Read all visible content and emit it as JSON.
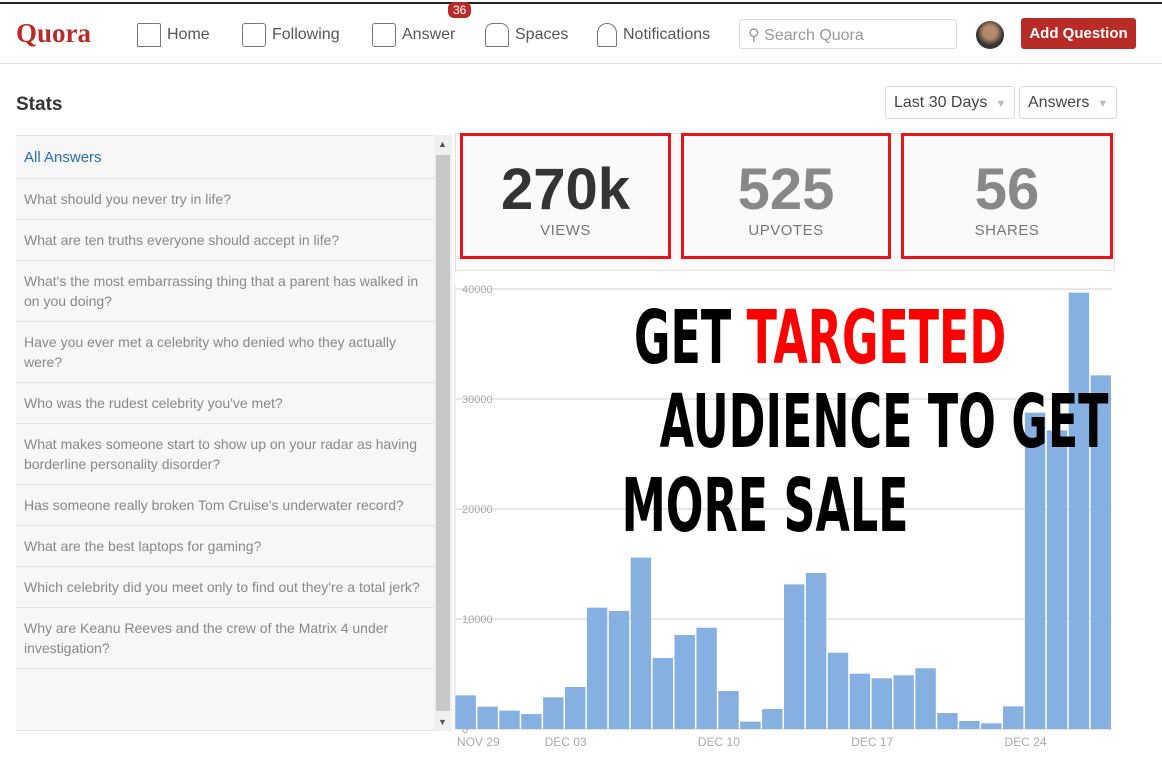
{
  "header": {
    "logo": "Quora",
    "nav": [
      {
        "label": "Home",
        "icon": "home-icon"
      },
      {
        "label": "Following",
        "icon": "list-icon"
      },
      {
        "label": "Answer",
        "icon": "pencil-icon",
        "badge": "36"
      },
      {
        "label": "Spaces",
        "icon": "people-icon"
      },
      {
        "label": "Notifications",
        "icon": "bell-icon"
      }
    ],
    "search_placeholder": "Search Quora",
    "add_question": "Add Question"
  },
  "page": {
    "title": "Stats",
    "range": "Last 30 Days",
    "type": "Answers"
  },
  "list": {
    "heading": "All Answers",
    "items": [
      "What should you never try in life?",
      "What are ten truths everyone should accept in life?",
      "What's the most embarrassing thing that a parent has walked in on you doing?",
      "Have you ever met a celebrity who denied who they actually were?",
      "Who was the rudest celebrity you've met?",
      "What makes someone start to show up on your radar as having borderline personality disorder?",
      "Has someone really broken Tom Cruise's underwater record?",
      "What are the best laptops for gaming?",
      "Which celebrity did you meet only to find out they're a total jerk?",
      "Why are Keanu Reeves and the crew of the Matrix 4 under investigation?"
    ]
  },
  "stats": [
    {
      "value": "270k",
      "label": "VIEWS"
    },
    {
      "value": "525",
      "label": "UPVOTES"
    },
    {
      "value": "56",
      "label": "SHARES"
    }
  ],
  "overlay": {
    "line1a": "GET ",
    "line1b": "TARGETED",
    "line2": "AUDIENCE TO GET",
    "line3": "MORE SALE"
  },
  "colors": {
    "brand": "#b92b27",
    "bar": "#86b0e1",
    "highlight": "#e8141c"
  },
  "chart_data": {
    "type": "bar",
    "title": "",
    "xlabel": "",
    "ylabel": "",
    "ylim": [
      0,
      40000
    ],
    "yticks": [
      0,
      10000,
      20000,
      30000,
      40000
    ],
    "grid": true,
    "categories": [
      "NOV 29",
      "NOV 30",
      "DEC 01",
      "DEC 02",
      "DEC 03",
      "DEC 04",
      "DEC 05",
      "DEC 06",
      "DEC 07",
      "DEC 08",
      "DEC 09",
      "DEC 10",
      "DEC 11",
      "DEC 12",
      "DEC 13",
      "DEC 14",
      "DEC 15",
      "DEC 16",
      "DEC 17",
      "DEC 18",
      "DEC 19",
      "DEC 20",
      "DEC 21",
      "DEC 22",
      "DEC 23",
      "DEC 24",
      "DEC 25",
      "DEC 26",
      "DEC 27",
      "DEC 28"
    ],
    "xtick_labels": [
      "NOV 29",
      "DEC 03",
      "DEC 10",
      "DEC 17",
      "DEC 24"
    ],
    "values": [
      3060,
      2030,
      1670,
      1360,
      2880,
      3820,
      11030,
      10730,
      15580,
      6450,
      8550,
      9210,
      3450,
      670,
      1820,
      13150,
      14180,
      6940,
      5030,
      4610,
      4880,
      5520,
      1450,
      730,
      520,
      2060,
      28760,
      27150,
      39670,
      32150
    ]
  }
}
